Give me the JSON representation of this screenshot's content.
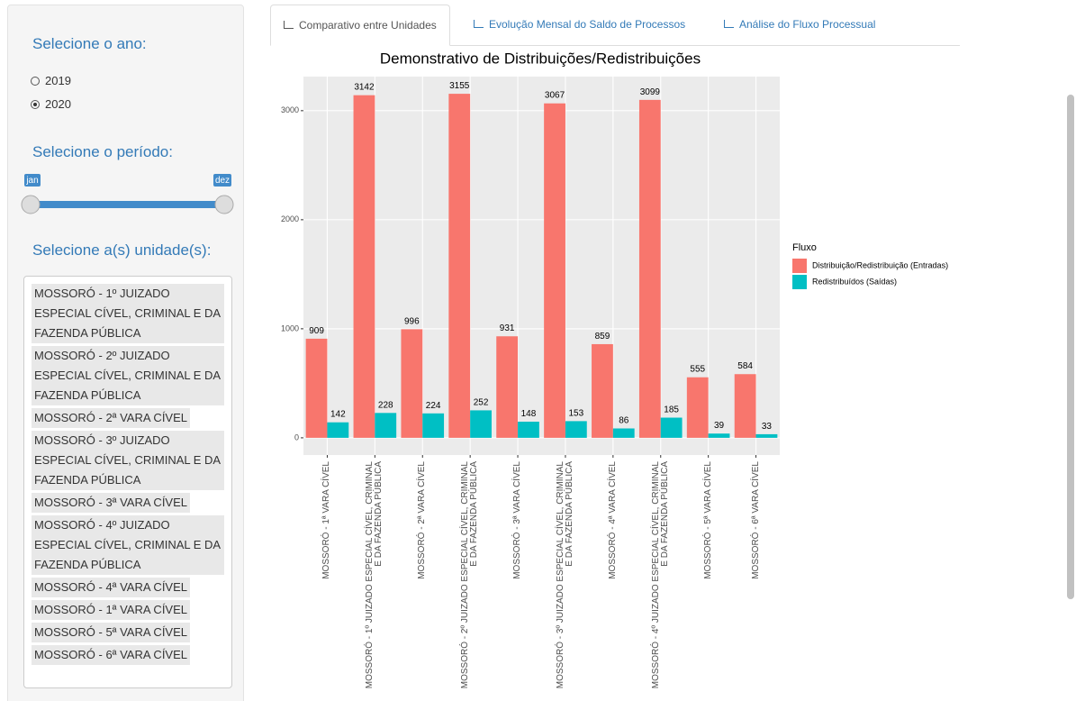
{
  "sidebar": {
    "year": {
      "label": "Selecione o ano:",
      "options": [
        "2019",
        "2020"
      ],
      "selected": 1
    },
    "period": {
      "label": "Selecione o período:",
      "from": "jan",
      "to": "dez"
    },
    "units": {
      "label": "Selecione a(s) unidade(s):",
      "selected": [
        "MOSSORÓ - 1º JUIZADO ESPECIAL CÍVEL, CRIMINAL E DA FAZENDA PÚBLICA",
        "MOSSORÓ - 2º JUIZADO ESPECIAL CÍVEL, CRIMINAL E DA FAZENDA PÚBLICA",
        "MOSSORÓ - 2ª VARA CÍVEL",
        "MOSSORÓ - 3º JUIZADO ESPECIAL CÍVEL, CRIMINAL E DA FAZENDA PÚBLICA",
        "MOSSORÓ - 3ª VARA CÍVEL",
        "MOSSORÓ - 4º JUIZADO ESPECIAL CÍVEL, CRIMINAL E DA FAZENDA PÚBLICA",
        "MOSSORÓ - 4ª VARA CÍVEL",
        "MOSSORÓ - 1ª VARA CÍVEL",
        "MOSSORÓ - 5ª VARA CÍVEL",
        "MOSSORÓ - 6ª VARA CÍVEL"
      ]
    }
  },
  "tabs": {
    "items": [
      "Comparativo entre Unidades",
      "Evolução Mensal do Saldo de Processos",
      "Análise do Fluxo Processual"
    ],
    "active": 0
  },
  "chart_data": {
    "type": "bar",
    "title": "Demonstrativo de Distribuições/Redistribuições",
    "categories": [
      "MOSSORÓ - 1ª VARA CÍVEL",
      "MOSSORÓ - 1º JUIZADO ESPECIAL CÍVEL, CRIMINAL E DA FAZENDA PÚBLICA",
      "MOSSORÓ - 2ª VARA CÍVEL",
      "MOSSORÓ - 2º JUIZADO ESPECIAL CÍVEL, CRIMINAL E DA FAZENDA PÚBLICA",
      "MOSSORÓ - 3ª VARA CÍVEL",
      "MOSSORÓ - 3º JUIZADO ESPECIAL CÍVEL, CRIMINAL E DA FAZENDA PÚBLICA",
      "MOSSORÓ - 4ª VARA CÍVEL",
      "MOSSORÓ - 4º JUIZADO ESPECIAL CÍVEL, CRIMINAL E DA FAZENDA PÚBLICA",
      "MOSSORÓ - 5ª VARA CÍVEL",
      "MOSSORÓ - 6ª VARA CÍVEL"
    ],
    "series": [
      {
        "name": "Distribuição/Redistribuição (Entradas)",
        "color": "#F8766D",
        "values": [
          909,
          3142,
          996,
          3155,
          931,
          3067,
          859,
          3099,
          555,
          584
        ]
      },
      {
        "name": "Redistribuídos (Saídas)",
        "color": "#00BFC4",
        "values": [
          142,
          228,
          224,
          252,
          148,
          153,
          86,
          185,
          39,
          33
        ]
      }
    ],
    "ylim": [
      -157.75,
      3312.75
    ],
    "yticks": [
      0,
      1000,
      2000,
      3000
    ],
    "grid": true,
    "legend": {
      "title": "Fluxo",
      "position": "right"
    }
  }
}
